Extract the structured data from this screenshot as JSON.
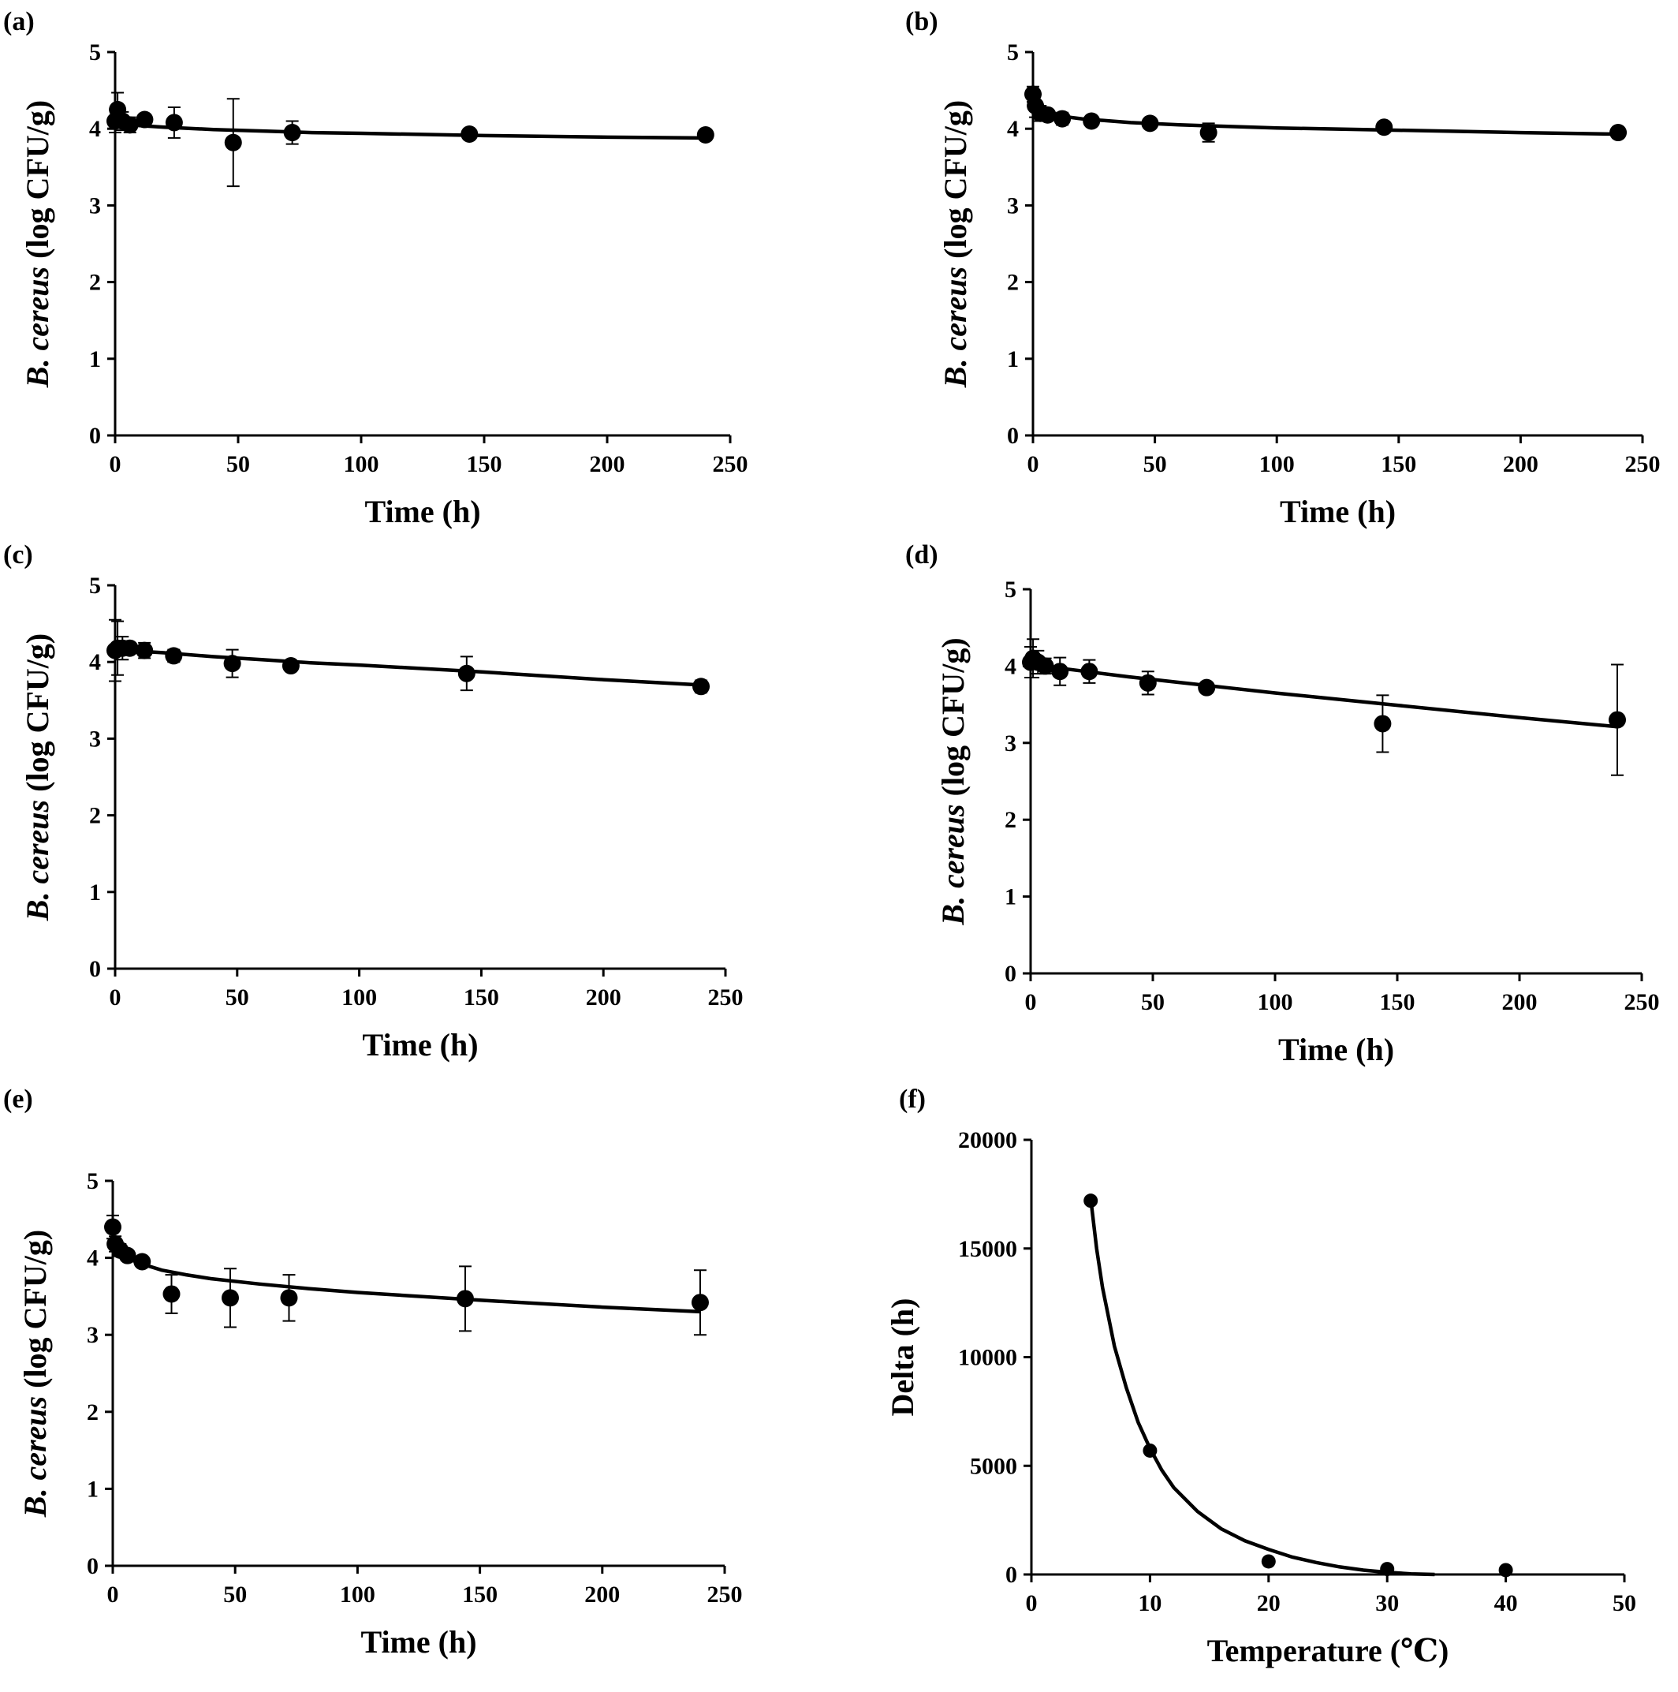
{
  "chart_data": [
    {
      "panel": "(a)",
      "type": "scatter",
      "xlabel": "Time (h)",
      "ylabel_italic": "B. cereus",
      "ylabel_rest": " (log CFU/g)",
      "xlim": [
        0,
        250
      ],
      "ylim": [
        0,
        5
      ],
      "xticks": [
        0,
        50,
        100,
        150,
        200,
        250
      ],
      "yticks": [
        0,
        1,
        2,
        3,
        4,
        5
      ],
      "grid": false,
      "points": [
        {
          "x": 0,
          "y": 4.1,
          "err": 0.15
        },
        {
          "x": 1,
          "y": 4.25,
          "err": 0.22
        },
        {
          "x": 3,
          "y": 4.1,
          "err": 0.12
        },
        {
          "x": 6,
          "y": 4.05,
          "err": 0.1
        },
        {
          "x": 12,
          "y": 4.12,
          "err": 0.05
        },
        {
          "x": 24,
          "y": 4.08,
          "err": 0.2
        },
        {
          "x": 48,
          "y": 3.82,
          "err": 0.57
        },
        {
          "x": 72,
          "y": 3.95,
          "err": 0.15
        },
        {
          "x": 144,
          "y": 3.93,
          "err": 0.03
        },
        {
          "x": 240,
          "y": 3.92,
          "err": 0.03
        }
      ],
      "fit": {
        "x": [
          0,
          5,
          10,
          20,
          40,
          60,
          80,
          100,
          150,
          200,
          240
        ],
        "y": [
          4.08,
          4.06,
          4.04,
          4.02,
          3.99,
          3.97,
          3.95,
          3.94,
          3.91,
          3.89,
          3.88
        ]
      }
    },
    {
      "panel": "(b)",
      "type": "scatter",
      "xlabel": "Time (h)",
      "ylabel_italic": "B. cereus",
      "ylabel_rest": " (log CFU/g)",
      "xlim": [
        0,
        250
      ],
      "ylim": [
        0,
        5
      ],
      "xticks": [
        0,
        50,
        100,
        150,
        200,
        250
      ],
      "yticks": [
        0,
        1,
        2,
        3,
        4,
        5
      ],
      "grid": false,
      "points": [
        {
          "x": 0,
          "y": 4.45,
          "err": 0.1
        },
        {
          "x": 1,
          "y": 4.3,
          "err": 0.15
        },
        {
          "x": 3,
          "y": 4.2,
          "err": 0.1
        },
        {
          "x": 6,
          "y": 4.18,
          "err": 0.06
        },
        {
          "x": 12,
          "y": 4.13,
          "err": 0.08
        },
        {
          "x": 24,
          "y": 4.1,
          "err": 0.05
        },
        {
          "x": 48,
          "y": 4.07,
          "err": 0.05
        },
        {
          "x": 72,
          "y": 3.95,
          "err": 0.12
        },
        {
          "x": 144,
          "y": 4.02,
          "err": 0.03
        },
        {
          "x": 240,
          "y": 3.95,
          "err": 0.03
        }
      ],
      "fit": {
        "x": [
          0,
          2,
          5,
          10,
          20,
          40,
          60,
          80,
          100,
          150,
          200,
          240
        ],
        "y": [
          4.32,
          4.24,
          4.2,
          4.17,
          4.13,
          4.08,
          4.05,
          4.03,
          4.01,
          3.98,
          3.95,
          3.93
        ]
      }
    },
    {
      "panel": "(c)",
      "type": "scatter",
      "xlabel": "Time (h)",
      "ylabel_italic": "B. cereus",
      "ylabel_rest": " (log CFU/g)",
      "xlim": [
        0,
        250
      ],
      "ylim": [
        0,
        5
      ],
      "xticks": [
        0,
        50,
        100,
        150,
        200,
        250
      ],
      "yticks": [
        0,
        1,
        2,
        3,
        4,
        5
      ],
      "grid": false,
      "points": [
        {
          "x": 0,
          "y": 4.15,
          "err": 0.4
        },
        {
          "x": 1,
          "y": 4.18,
          "err": 0.35
        },
        {
          "x": 3,
          "y": 4.18,
          "err": 0.15
        },
        {
          "x": 6,
          "y": 4.18,
          "err": 0.07
        },
        {
          "x": 12,
          "y": 4.15,
          "err": 0.1
        },
        {
          "x": 24,
          "y": 4.08,
          "err": 0.08
        },
        {
          "x": 48,
          "y": 3.98,
          "err": 0.18
        },
        {
          "x": 72,
          "y": 3.95,
          "err": 0.05
        },
        {
          "x": 144,
          "y": 3.85,
          "err": 0.22
        },
        {
          "x": 240,
          "y": 3.68,
          "err": 0.08
        }
      ],
      "fit": {
        "x": [
          0,
          5,
          10,
          20,
          40,
          60,
          80,
          100,
          150,
          200,
          240
        ],
        "y": [
          4.16,
          4.15,
          4.14,
          4.12,
          4.07,
          4.03,
          3.99,
          3.96,
          3.87,
          3.77,
          3.7
        ]
      }
    },
    {
      "panel": "(d)",
      "type": "scatter",
      "xlabel": "Time (h)",
      "ylabel_italic": "B. cereus",
      "ylabel_rest": " (log CFU/g)",
      "xlim": [
        0,
        250
      ],
      "ylim": [
        0,
        5
      ],
      "xticks": [
        0,
        50,
        100,
        150,
        200,
        250
      ],
      "yticks": [
        0,
        1,
        2,
        3,
        4,
        5
      ],
      "grid": false,
      "points": [
        {
          "x": 0,
          "y": 4.05,
          "err": 0.2
        },
        {
          "x": 1,
          "y": 4.1,
          "err": 0.25
        },
        {
          "x": 3,
          "y": 4.05,
          "err": 0.15
        },
        {
          "x": 6,
          "y": 4.0,
          "err": 0.1
        },
        {
          "x": 12,
          "y": 3.93,
          "err": 0.18
        },
        {
          "x": 24,
          "y": 3.93,
          "err": 0.15
        },
        {
          "x": 48,
          "y": 3.78,
          "err": 0.15
        },
        {
          "x": 72,
          "y": 3.72,
          "err": 0.05
        },
        {
          "x": 144,
          "y": 3.25,
          "err": 0.37
        },
        {
          "x": 240,
          "y": 3.3,
          "err": 0.72
        }
      ],
      "fit": {
        "x": [
          0,
          5,
          10,
          20,
          40,
          60,
          80,
          100,
          150,
          200,
          240
        ],
        "y": [
          4.02,
          4.0,
          3.98,
          3.94,
          3.86,
          3.79,
          3.72,
          3.65,
          3.49,
          3.33,
          3.21
        ]
      }
    },
    {
      "panel": "(e)",
      "type": "scatter",
      "xlabel": "Time (h)",
      "ylabel_italic": "B. cereus",
      "ylabel_rest": " (log CFU/g)",
      "xlim": [
        0,
        250
      ],
      "ylim": [
        0,
        5
      ],
      "xticks": [
        0,
        50,
        100,
        150,
        200,
        250
      ],
      "yticks": [
        0,
        1,
        2,
        3,
        4,
        5
      ],
      "grid": false,
      "points": [
        {
          "x": 0,
          "y": 4.4,
          "err": 0.15
        },
        {
          "x": 1,
          "y": 4.18,
          "err": 0.1
        },
        {
          "x": 3,
          "y": 4.1,
          "err": 0.08
        },
        {
          "x": 6,
          "y": 4.03,
          "err": 0.06
        },
        {
          "x": 12,
          "y": 3.95,
          "err": 0.05
        },
        {
          "x": 24,
          "y": 3.53,
          "err": 0.25
        },
        {
          "x": 48,
          "y": 3.48,
          "err": 0.38
        },
        {
          "x": 72,
          "y": 3.48,
          "err": 0.3
        },
        {
          "x": 144,
          "y": 3.47,
          "err": 0.42
        },
        {
          "x": 240,
          "y": 3.42,
          "err": 0.42
        }
      ],
      "fit": {
        "x": [
          0,
          2,
          5,
          10,
          20,
          30,
          40,
          60,
          80,
          100,
          150,
          200,
          240
        ],
        "y": [
          4.2,
          4.1,
          4.02,
          3.94,
          3.84,
          3.78,
          3.73,
          3.66,
          3.6,
          3.55,
          3.45,
          3.36,
          3.3
        ]
      }
    },
    {
      "panel": "(f)",
      "type": "scatter",
      "xlabel": "Temperature (℃)",
      "ylabel": "Delta (h)",
      "xlim": [
        0,
        50
      ],
      "ylim": [
        0,
        20000
      ],
      "xticks": [
        0,
        10,
        20,
        30,
        40,
        50
      ],
      "yticks": [
        0,
        5000,
        10000,
        15000,
        20000
      ],
      "grid": false,
      "points": [
        {
          "x": 5,
          "y": 17200
        },
        {
          "x": 10,
          "y": 5700
        },
        {
          "x": 20,
          "y": 600
        },
        {
          "x": 30,
          "y": 250
        },
        {
          "x": 40,
          "y": 200
        }
      ],
      "fit": {
        "x": [
          5,
          5.5,
          6,
          7,
          8,
          9,
          10,
          11,
          12,
          14,
          16,
          18,
          20,
          22,
          24,
          26,
          28,
          30,
          32,
          34
        ],
        "y": [
          17300,
          15000,
          13200,
          10500,
          8600,
          7000,
          5800,
          4800,
          4000,
          2900,
          2100,
          1550,
          1150,
          800,
          550,
          350,
          200,
          100,
          30,
          0
        ]
      }
    }
  ]
}
